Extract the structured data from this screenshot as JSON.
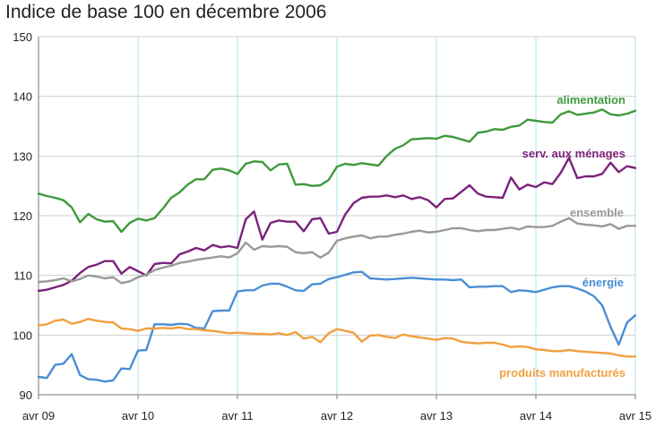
{
  "chart_data": {
    "type": "line",
    "title": "Indice de base 100 en décembre 2006",
    "xlabel": "",
    "ylabel": "",
    "ylim": [
      90,
      150
    ],
    "yticks": [
      90,
      100,
      110,
      120,
      130,
      140,
      150
    ],
    "xlim": [
      "2009-04",
      "2015-04"
    ],
    "xticks": [
      "avr 09",
      "avr 10",
      "avr 11",
      "avr 12",
      "avr 13",
      "avr 14",
      "avr 15"
    ],
    "grid": true,
    "x_months": [
      0,
      1,
      2,
      3,
      4,
      5,
      6,
      7,
      8,
      9,
      10,
      11,
      12,
      13,
      14,
      15,
      16,
      17,
      18,
      19,
      20,
      21,
      22,
      23,
      24,
      25,
      26,
      27,
      28,
      29,
      30,
      31,
      32,
      33,
      34,
      35,
      36,
      37,
      38,
      39,
      40,
      41,
      42,
      43,
      44,
      45,
      46,
      47,
      48,
      49,
      50,
      51,
      52,
      53,
      54,
      55,
      56,
      57,
      58,
      59,
      60,
      61,
      62,
      63,
      64,
      65,
      66,
      67,
      68,
      69,
      70,
      71,
      72
    ],
    "series": [
      {
        "name": "alimentation",
        "color": "#3f9a3c",
        "values": [
          123.7,
          123.3,
          123,
          122.6,
          121.4,
          118.9,
          120.3,
          119.4,
          119.0,
          119.1,
          117.3,
          118.8,
          119.5,
          119.2,
          119.6,
          121.2,
          123.0,
          123.9,
          125.2,
          126.1,
          126.1,
          127.7,
          127.9,
          127.6,
          127.0,
          128.7,
          129.1,
          129.0,
          127.6,
          128.6,
          128.7,
          125.2,
          125.3,
          125.0,
          125.1,
          126.0,
          128.2,
          128.7,
          128.5,
          128.8,
          128.6,
          128.4,
          130.0,
          131.2,
          131.8,
          132.8,
          132.9,
          133.0,
          132.9,
          133.4,
          133.2,
          132.8,
          132.4,
          133.9,
          134.1,
          134.5,
          134.4,
          134.9,
          135.1,
          136.1,
          135.9,
          135.7,
          135.6,
          137.0,
          137.5,
          136.9,
          137.1,
          137.3,
          137.8,
          137.0,
          136.8,
          137.1,
          137.6
        ]
      },
      {
        "name": "serv. aux ménages",
        "color": "#7b237b",
        "values": [
          107.4,
          107.6,
          108.0,
          108.4,
          109.1,
          110.4,
          111.4,
          111.8,
          112.4,
          112.4,
          110.3,
          111.4,
          110.7,
          110.0,
          111.9,
          112.1,
          112.0,
          113.5,
          114.0,
          114.6,
          114.2,
          115.1,
          114.7,
          114.9,
          114.6,
          119.4,
          120.7,
          116.0,
          118.8,
          119.2,
          119.0,
          119.0,
          117.4,
          119.4,
          119.6,
          117.0,
          117.3,
          120.2,
          122.1,
          123.0,
          123.2,
          123.2,
          123.4,
          123.1,
          123.4,
          122.8,
          123.1,
          122.6,
          121.4,
          122.8,
          122.9,
          124.0,
          125.1,
          123.7,
          123.2,
          123.1,
          123.0,
          126.4,
          124.4,
          125.2,
          124.8,
          125.6,
          125.3,
          127.2,
          129.7,
          126.3,
          126.6,
          126.6,
          127.0,
          128.9,
          127.3,
          128.3,
          128.0
        ]
      },
      {
        "name": "ensemble",
        "color": "#999999",
        "values": [
          108.9,
          109.0,
          109.2,
          109.5,
          109.0,
          109.4,
          110.0,
          109.8,
          109.5,
          109.7,
          108.7,
          109.0,
          109.7,
          110.1,
          110.9,
          111.3,
          111.6,
          112.1,
          112.3,
          112.6,
          112.8,
          113.0,
          113.2,
          113.0,
          113.7,
          115.5,
          114.3,
          114.9,
          114.8,
          114.9,
          114.8,
          113.9,
          113.7,
          113.9,
          113.0,
          113.8,
          115.8,
          116.2,
          116.5,
          116.7,
          116.2,
          116.5,
          116.5,
          116.8,
          117.0,
          117.3,
          117.5,
          117.2,
          117.3,
          117.6,
          117.9,
          117.9,
          117.6,
          117.4,
          117.6,
          117.6,
          117.8,
          118.0,
          117.7,
          118.2,
          118.1,
          118.1,
          118.3,
          119.0,
          119.6,
          118.7,
          118.5,
          118.4,
          118.2,
          118.6,
          117.8,
          118.3,
          118.3
        ]
      },
      {
        "name": "énergie",
        "color": "#4a8fd4",
        "values": [
          93.0,
          92.8,
          95.0,
          95.2,
          96.8,
          93.3,
          92.6,
          92.5,
          92.2,
          92.4,
          94.4,
          94.3,
          97.4,
          97.5,
          101.8,
          101.8,
          101.7,
          101.9,
          101.8,
          101.2,
          101.1,
          104.0,
          104.1,
          104.1,
          107.3,
          107.5,
          107.5,
          108.3,
          108.6,
          108.6,
          108.1,
          107.5,
          107.4,
          108.5,
          108.6,
          109.4,
          109.7,
          110.1,
          110.5,
          110.6,
          109.5,
          109.4,
          109.3,
          109.4,
          109.5,
          109.6,
          109.5,
          109.4,
          109.3,
          109.3,
          109.2,
          109.3,
          108.0,
          108.1,
          108.1,
          108.2,
          108.2,
          107.2,
          107.5,
          107.4,
          107.2,
          107.6,
          108.0,
          108.2,
          108.2,
          107.8,
          107.3,
          106.5,
          105.0,
          101.4,
          98.4,
          102.1,
          103.3
        ]
      },
      {
        "name": "produits manufacturés",
        "color": "#f0a040",
        "values": [
          101.6,
          101.8,
          102.4,
          102.6,
          101.9,
          102.2,
          102.7,
          102.4,
          102.2,
          102.1,
          101.1,
          101.0,
          100.7,
          101.1,
          101.1,
          101.2,
          101.1,
          101.3,
          101.0,
          101.0,
          100.8,
          100.7,
          100.5,
          100.3,
          100.4,
          100.3,
          100.2,
          100.2,
          100.1,
          100.3,
          100.0,
          100.5,
          99.4,
          99.7,
          98.8,
          100.3,
          101.0,
          100.7,
          100.4,
          98.9,
          99.9,
          100.0,
          99.7,
          99.5,
          100.1,
          99.8,
          99.6,
          99.4,
          99.2,
          99.5,
          99.4,
          98.9,
          98.7,
          98.6,
          98.7,
          98.7,
          98.4,
          98.0,
          98.1,
          98.0,
          97.6,
          97.5,
          97.3,
          97.3,
          97.5,
          97.3,
          97.2,
          97.1,
          97.0,
          96.9,
          96.6,
          96.4,
          96.4
        ]
      }
    ]
  }
}
